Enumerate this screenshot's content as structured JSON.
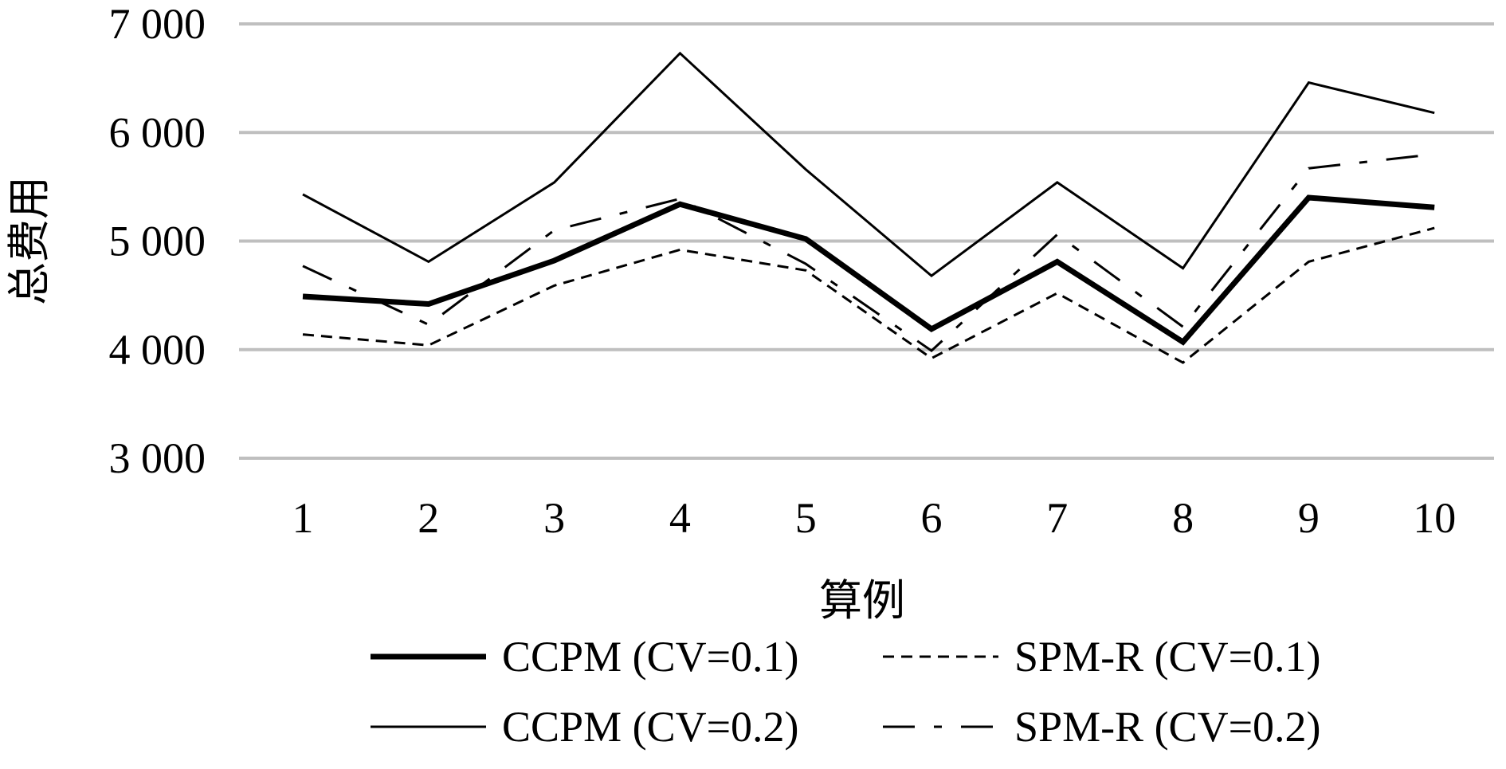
{
  "chart_data": {
    "type": "line",
    "title": "",
    "xlabel": "算例",
    "ylabel": "总费用",
    "categories": [
      "1",
      "2",
      "3",
      "4",
      "5",
      "6",
      "7",
      "8",
      "9",
      "10"
    ],
    "ylim": [
      3000,
      7000
    ],
    "yticks": [
      3000,
      4000,
      5000,
      6000,
      7000
    ],
    "ytick_labels": [
      "3 000",
      "4 000",
      "5 000",
      "6 000",
      "7 000"
    ],
    "grid": "horizontal",
    "legend_position": "bottom",
    "series": [
      {
        "name": "CCPM (CV=0.1)",
        "style": "thick-solid",
        "color": "#000000",
        "values": [
          4490,
          4420,
          4820,
          5340,
          5020,
          4190,
          4810,
          4070,
          5400,
          5310
        ]
      },
      {
        "name": "SPM-R (CV=0.1)",
        "style": "dashed",
        "color": "#000000",
        "values": [
          4140,
          4040,
          4590,
          4920,
          4730,
          3920,
          4520,
          3880,
          4810,
          5120
        ]
      },
      {
        "name": "CCPM (CV=0.2)",
        "style": "thin-solid",
        "color": "#000000",
        "values": [
          5430,
          4810,
          5540,
          6730,
          5660,
          4680,
          5540,
          4750,
          6460,
          6180
        ]
      },
      {
        "name": "SPM-R (CV=0.2)",
        "style": "long-dash",
        "color": "#000000",
        "values": [
          4770,
          4230,
          5100,
          5390,
          4790,
          3990,
          5060,
          4210,
          5670,
          5800
        ]
      }
    ]
  }
}
